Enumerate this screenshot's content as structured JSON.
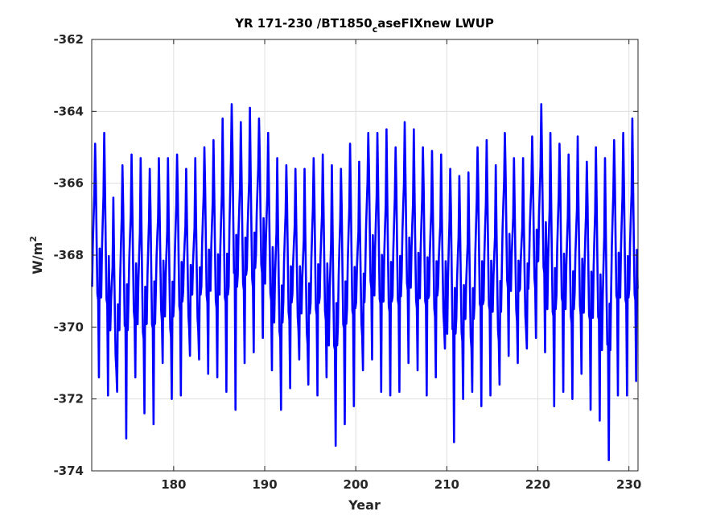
{
  "chart_data": {
    "type": "line",
    "title": {
      "prefix": "YR 171-230 /BT1850",
      "subscript": "c",
      "suffix": "aseFIXnew LWUP"
    },
    "xlabel": "Year",
    "ylabel": {
      "base": "W/m",
      "superscript": "2"
    },
    "xlim": [
      171,
      231
    ],
    "ylim": [
      -374,
      -362
    ],
    "xticks": [
      180,
      190,
      200,
      210,
      220,
      230
    ],
    "yticks": [
      -374,
      -372,
      -370,
      -368,
      -366,
      -364,
      -362
    ],
    "xtick_labels": [
      "180",
      "190",
      "200",
      "210",
      "220",
      "230"
    ],
    "ytick_labels": [
      "-374",
      "-372",
      "-370",
      "-368",
      "-366",
      "-364",
      "-362"
    ],
    "grid": true,
    "line_color": "#0000ff",
    "series": [
      {
        "start_year": 171,
        "annual_maxima": [
          -364.9,
          -364.6,
          -366.4,
          -365.5,
          -365.2,
          -365.3,
          -365.6,
          -365.3,
          -365.3,
          -365.2,
          -365.6,
          -365.3,
          -365.0,
          -364.8,
          -364.2,
          -363.8,
          -364.3,
          -363.9,
          -364.2,
          -364.6,
          -365.3,
          -365.5,
          -365.6,
          -365.6,
          -365.3,
          -365.2,
          -365.5,
          -365.6,
          -364.9,
          -365.4,
          -364.6,
          -364.6,
          -364.5,
          -365.0,
          -364.3,
          -364.5,
          -365.0,
          -365.1,
          -365.2,
          -365.6,
          -365.8,
          -365.7,
          -365.0,
          -364.8,
          -365.5,
          -364.6,
          -365.3,
          -365.3,
          -364.7,
          -363.8,
          -364.6,
          -364.9,
          -365.2,
          -364.7,
          -365.4,
          -365.0,
          -365.3,
          -364.8,
          -364.6,
          -364.2
        ],
        "annual_minima": [
          -371.4,
          -371.9,
          -371.8,
          -373.1,
          -371.4,
          -372.4,
          -372.7,
          -371.0,
          -372.0,
          -371.9,
          -370.8,
          -370.9,
          -371.3,
          -371.4,
          -371.8,
          -372.3,
          -371.0,
          -370.7,
          -370.3,
          -371.2,
          -372.3,
          -371.7,
          -370.9,
          -371.6,
          -371.9,
          -371.4,
          -373.3,
          -372.7,
          -372.2,
          -371.2,
          -370.9,
          -371.8,
          -371.9,
          -371.8,
          -371.0,
          -371.2,
          -371.9,
          -371.4,
          -370.6,
          -373.2,
          -372.0,
          -371.8,
          -372.2,
          -371.9,
          -371.6,
          -370.8,
          -371.0,
          -370.6,
          -370.3,
          -370.7,
          -372.2,
          -371.8,
          -372.0,
          -371.3,
          -372.3,
          -372.6,
          -373.7,
          -371.9,
          -371.9,
          -371.5
        ]
      }
    ]
  }
}
